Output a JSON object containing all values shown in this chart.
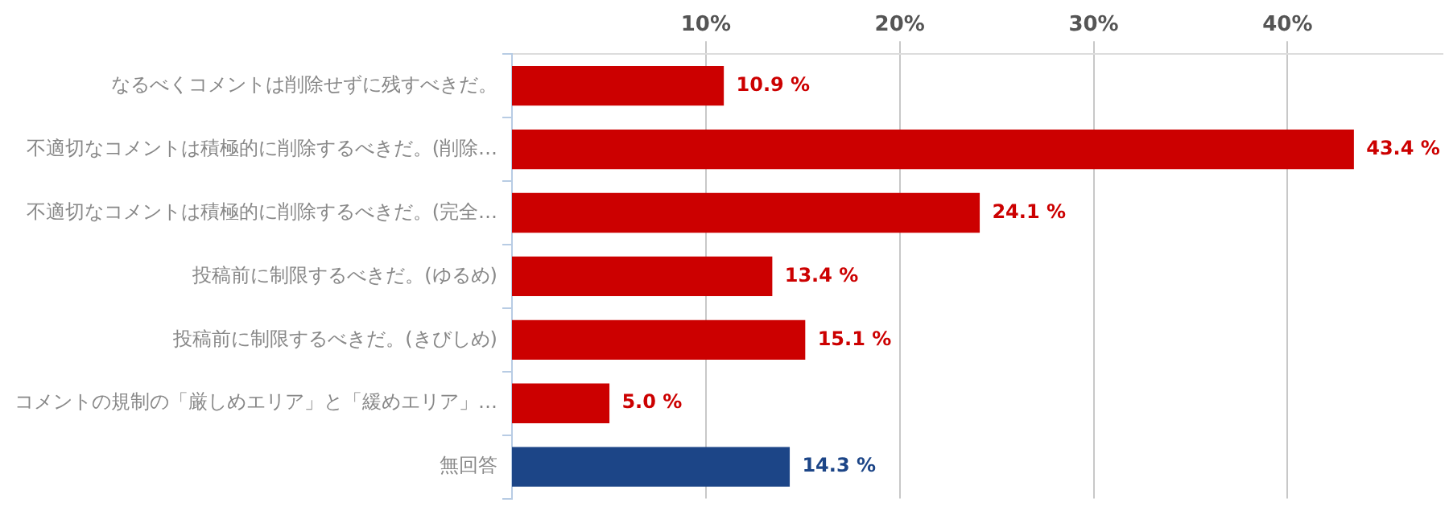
{
  "chart_data": {
    "type": "bar",
    "orientation": "horizontal",
    "categories": [
      "なるべくコメントは削除せずに残すべきだ。",
      "不適切なコメントは積極的に削除するべきだ。(削除…",
      "不適切なコメントは積極的に削除するべきだ。(完全…",
      "投稿前に制限するべきだ。(ゆるめ)",
      "投稿前に制限するべきだ。(きびしめ)",
      "コメントの規制の「厳しめエリア」と「緩めエリア」…",
      "無回答"
    ],
    "values": [
      10.9,
      43.4,
      24.1,
      13.4,
      15.1,
      5.0,
      14.3
    ],
    "colors": [
      "#cc0000",
      "#cc0000",
      "#cc0000",
      "#cc0000",
      "#cc0000",
      "#cc0000",
      "#1c4587"
    ],
    "value_labels": [
      "10.9 %",
      "43.4 %",
      "24.1 %",
      "13.4 %",
      "15.1 %",
      "5.0 %",
      "14.3 %"
    ],
    "xlim": [
      0,
      48
    ],
    "xticks": [
      {
        "value": 10,
        "label": "10%"
      },
      {
        "value": 20,
        "label": "20%"
      },
      {
        "value": 30,
        "label": "30%"
      },
      {
        "value": 40,
        "label": "40%"
      }
    ],
    "grid": "x",
    "legend": false
  }
}
